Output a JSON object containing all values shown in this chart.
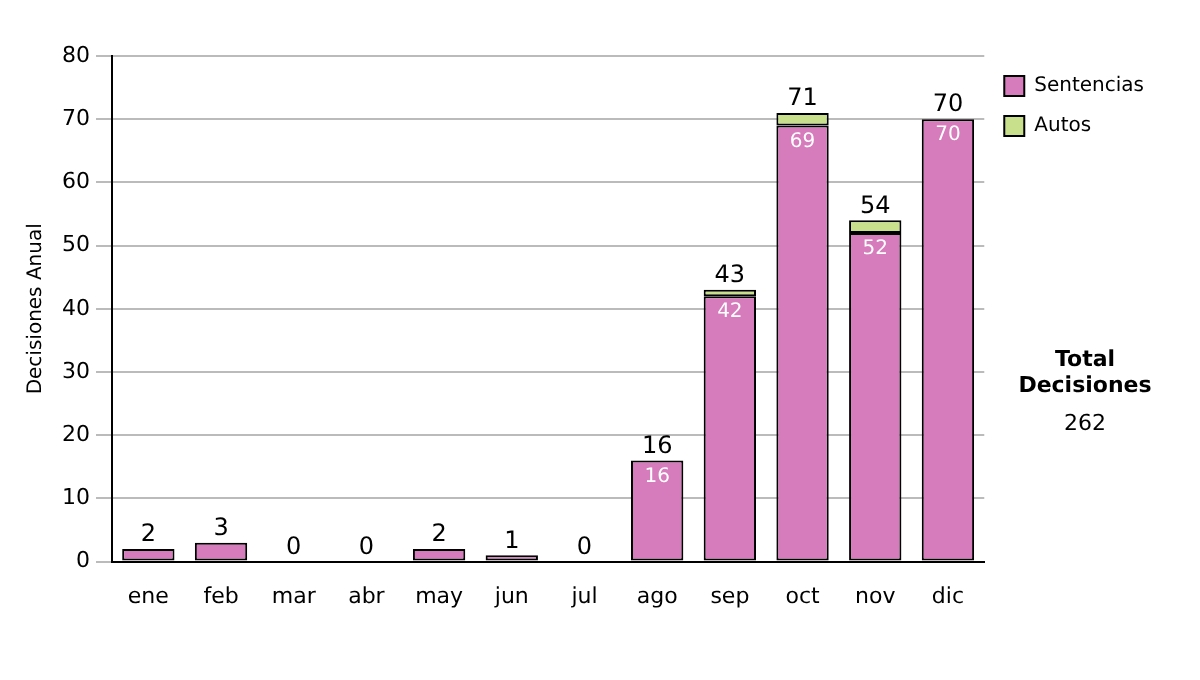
{
  "chart_data": {
    "type": "bar",
    "stacked": true,
    "ylabel": "Decisiones Anual",
    "categories": [
      "ene",
      "feb",
      "mar",
      "abr",
      "may",
      "jun",
      "jul",
      "ago",
      "sep",
      "oct",
      "nov",
      "dic"
    ],
    "series": [
      {
        "name": "Sentencias",
        "color": "#d67bbb",
        "values": [
          2,
          3,
          0,
          0,
          2,
          1,
          0,
          16,
          42,
          69,
          52,
          70
        ],
        "value_labels": [
          null,
          null,
          null,
          null,
          null,
          null,
          null,
          "16",
          "42",
          "69",
          "52",
          "70"
        ]
      },
      {
        "name": "Autos",
        "color": "#c8e08c",
        "values": [
          0,
          0,
          0,
          0,
          0,
          0,
          0,
          0,
          1,
          2,
          2,
          0
        ]
      }
    ],
    "totals": [
      "2",
      "3",
      "0",
      "0",
      "2",
      "1",
      "0",
      "16",
      "43",
      "71",
      "54",
      "70"
    ],
    "ylim": [
      0,
      80
    ],
    "yticks": [
      0,
      10,
      20,
      30,
      40,
      50,
      60,
      70,
      80
    ],
    "grid": "y",
    "legend": "right",
    "annotations": [
      "Total Decisiones",
      "262"
    ]
  }
}
